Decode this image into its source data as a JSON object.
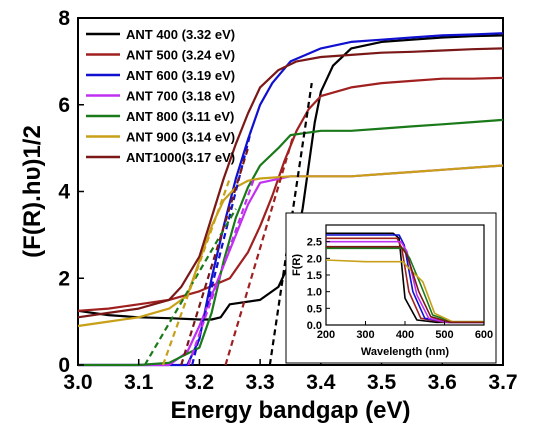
{
  "chart_data": [
    {
      "type": "line",
      "xlabel": "Energy bandgap (eV)",
      "ylabel": "(F(R).hυ)1/2",
      "xlim": [
        3.0,
        3.7
      ],
      "ylim": [
        0,
        8
      ],
      "xticks": [
        3.0,
        3.1,
        3.2,
        3.3,
        3.4,
        3.5,
        3.6,
        3.7
      ],
      "yticks": [
        0,
        2,
        4,
        6,
        8
      ],
      "grid": false,
      "legend_position": "top-left",
      "series": [
        {
          "name": "ANT 400 (3.32 eV)",
          "color": "#000000",
          "x": [
            3.0,
            3.05,
            3.1,
            3.15,
            3.2,
            3.22,
            3.235,
            3.25,
            3.3,
            3.33,
            3.35,
            3.36,
            3.37,
            3.38,
            3.39,
            3.4,
            3.42,
            3.45,
            3.5,
            3.55,
            3.6,
            3.65,
            3.7
          ],
          "y": [
            1.25,
            1.15,
            1.1,
            1.08,
            1.05,
            1.05,
            1.1,
            1.4,
            1.5,
            1.8,
            2.4,
            2.9,
            3.6,
            4.6,
            5.6,
            6.3,
            6.9,
            7.3,
            7.45,
            7.5,
            7.55,
            7.58,
            7.6
          ],
          "tangent": {
            "x": [
              3.316,
              3.385
            ],
            "y": [
              0,
              6.5
            ]
          }
        },
        {
          "name": "ANT 500 (3.24 eV)",
          "color": "#a02020",
          "x": [
            3.0,
            3.05,
            3.1,
            3.15,
            3.2,
            3.25,
            3.28,
            3.3,
            3.32,
            3.34,
            3.36,
            3.38,
            3.4,
            3.45,
            3.5,
            3.55,
            3.6,
            3.65,
            3.7
          ],
          "y": [
            1.25,
            1.3,
            1.4,
            1.5,
            1.7,
            2.0,
            2.6,
            3.2,
            3.9,
            4.7,
            5.4,
            5.9,
            6.2,
            6.4,
            6.5,
            6.55,
            6.6,
            6.6,
            6.62
          ],
          "tangent": {
            "x": [
              3.243,
              3.355
            ],
            "y": [
              0,
              5.3
            ]
          }
        },
        {
          "name": "ANT 600 (3.19 eV)",
          "color": "#1010d0",
          "x": [
            3.0,
            3.05,
            3.1,
            3.15,
            3.18,
            3.2,
            3.22,
            3.24,
            3.26,
            3.28,
            3.3,
            3.32,
            3.35,
            3.4,
            3.45,
            3.5,
            3.55,
            3.6,
            3.65,
            3.7
          ],
          "y": [
            0.0,
            0.0,
            0.0,
            0.0,
            0.0,
            0.6,
            2.0,
            3.2,
            4.3,
            5.2,
            6.0,
            6.5,
            7.0,
            7.3,
            7.45,
            7.5,
            7.55,
            7.6,
            7.62,
            7.65
          ],
          "tangent": {
            "x": [
              3.188,
              3.285
            ],
            "y": [
              0,
              5.4
            ]
          }
        },
        {
          "name": "ANT 700 (3.18 eV)",
          "color": "#c030f0",
          "x": [
            3.0,
            3.05,
            3.1,
            3.15,
            3.18,
            3.2,
            3.22,
            3.24,
            3.26,
            3.28,
            3.3,
            3.35,
            3.4,
            3.45,
            3.5,
            3.55,
            3.6,
            3.65,
            3.7
          ],
          "y": [
            0.0,
            0.0,
            0.0,
            0.0,
            0.3,
            0.9,
            1.6,
            2.3,
            3.0,
            3.7,
            4.2,
            4.35,
            4.35,
            4.35,
            4.4,
            4.45,
            4.5,
            4.55,
            4.6
          ],
          "tangent": {
            "x": [
              3.182,
              3.29
            ],
            "y": [
              0,
              4.3
            ]
          }
        },
        {
          "name": "ANT 800 (3.11 eV)",
          "color": "#1a7a1a",
          "x": [
            3.0,
            3.05,
            3.1,
            3.15,
            3.2,
            3.22,
            3.24,
            3.26,
            3.28,
            3.3,
            3.33,
            3.35,
            3.4,
            3.45,
            3.5,
            3.55,
            3.6,
            3.65,
            3.7
          ],
          "y": [
            0.0,
            0.0,
            0.0,
            0.05,
            0.4,
            1.2,
            2.4,
            3.4,
            4.1,
            4.6,
            5.0,
            5.3,
            5.4,
            5.4,
            5.45,
            5.5,
            5.55,
            5.6,
            5.65
          ],
          "tangent": {
            "x": [
              3.11,
              3.26
            ],
            "y": [
              0,
              3.6
            ]
          }
        },
        {
          "name": "ANT 900 (3.14 eV)",
          "color": "#c8a018",
          "x": [
            3.0,
            3.05,
            3.1,
            3.15,
            3.18,
            3.2,
            3.22,
            3.24,
            3.26,
            3.28,
            3.3,
            3.35,
            3.4,
            3.45,
            3.5,
            3.55,
            3.6,
            3.65,
            3.7
          ],
          "y": [
            0.9,
            1.0,
            1.1,
            1.3,
            1.6,
            2.4,
            3.2,
            3.8,
            4.1,
            4.25,
            4.3,
            4.35,
            4.35,
            4.35,
            4.4,
            4.45,
            4.5,
            4.55,
            4.6
          ],
          "tangent": {
            "x": [
              3.14,
              3.25
            ],
            "y": [
              0,
              4.3
            ]
          }
        },
        {
          "name": "ANT1000(3.17 eV)",
          "color": "#7a1818",
          "x": [
            3.0,
            3.05,
            3.1,
            3.15,
            3.17,
            3.2,
            3.22,
            3.24,
            3.26,
            3.28,
            3.3,
            3.33,
            3.36,
            3.4,
            3.45,
            3.5,
            3.55,
            3.6,
            3.65,
            3.7
          ],
          "y": [
            1.1,
            1.2,
            1.3,
            1.5,
            1.8,
            2.5,
            3.4,
            4.3,
            5.1,
            5.8,
            6.4,
            6.8,
            7.0,
            7.1,
            7.15,
            7.2,
            7.22,
            7.25,
            7.28,
            7.3
          ],
          "tangent": {
            "x": [
              3.17,
              3.28
            ],
            "y": [
              0,
              5.0
            ]
          }
        }
      ]
    },
    {
      "type": "line",
      "xlabel": "Wavelength (nm)",
      "ylabel": "F(R)",
      "xlim": [
        200,
        600
      ],
      "ylim": [
        0,
        3.0
      ],
      "xticks": [
        200,
        300,
        400,
        500,
        600
      ],
      "yticks": [
        0.0,
        0.5,
        1.0,
        1.5,
        2.0,
        2.5
      ],
      "grid": false,
      "series": [
        {
          "color": "#000000",
          "x": [
            200,
            300,
            370,
            385,
            400,
            430,
            480,
            600
          ],
          "y": [
            2.75,
            2.75,
            2.75,
            2.6,
            0.8,
            0.15,
            0.08,
            0.08
          ]
        },
        {
          "color": "#a02020",
          "x": [
            200,
            300,
            380,
            392,
            410,
            440,
            500,
            600
          ],
          "y": [
            2.6,
            2.6,
            2.6,
            2.3,
            1.0,
            0.2,
            0.08,
            0.08
          ]
        },
        {
          "color": "#1010d0",
          "x": [
            200,
            300,
            385,
            398,
            420,
            450,
            510,
            600
          ],
          "y": [
            2.7,
            2.7,
            2.7,
            2.4,
            1.0,
            0.2,
            0.08,
            0.08
          ]
        },
        {
          "color": "#c030f0",
          "x": [
            200,
            300,
            390,
            405,
            430,
            460,
            510,
            600
          ],
          "y": [
            2.5,
            2.5,
            2.5,
            2.2,
            0.9,
            0.2,
            0.08,
            0.08
          ]
        },
        {
          "color": "#1a7a1a",
          "x": [
            200,
            300,
            395,
            412,
            440,
            470,
            520,
            600
          ],
          "y": [
            2.3,
            2.3,
            2.3,
            2.0,
            1.2,
            0.3,
            0.1,
            0.1
          ]
        },
        {
          "color": "#c8a018",
          "x": [
            200,
            300,
            395,
            410,
            445,
            475,
            520,
            600
          ],
          "y": [
            1.95,
            1.9,
            1.9,
            1.7,
            1.3,
            0.35,
            0.1,
            0.1
          ]
        },
        {
          "color": "#7a1818",
          "x": [
            200,
            300,
            390,
            405,
            435,
            465,
            515,
            600
          ],
          "y": [
            2.35,
            2.35,
            2.35,
            2.1,
            1.0,
            0.25,
            0.08,
            0.08
          ]
        }
      ]
    }
  ]
}
